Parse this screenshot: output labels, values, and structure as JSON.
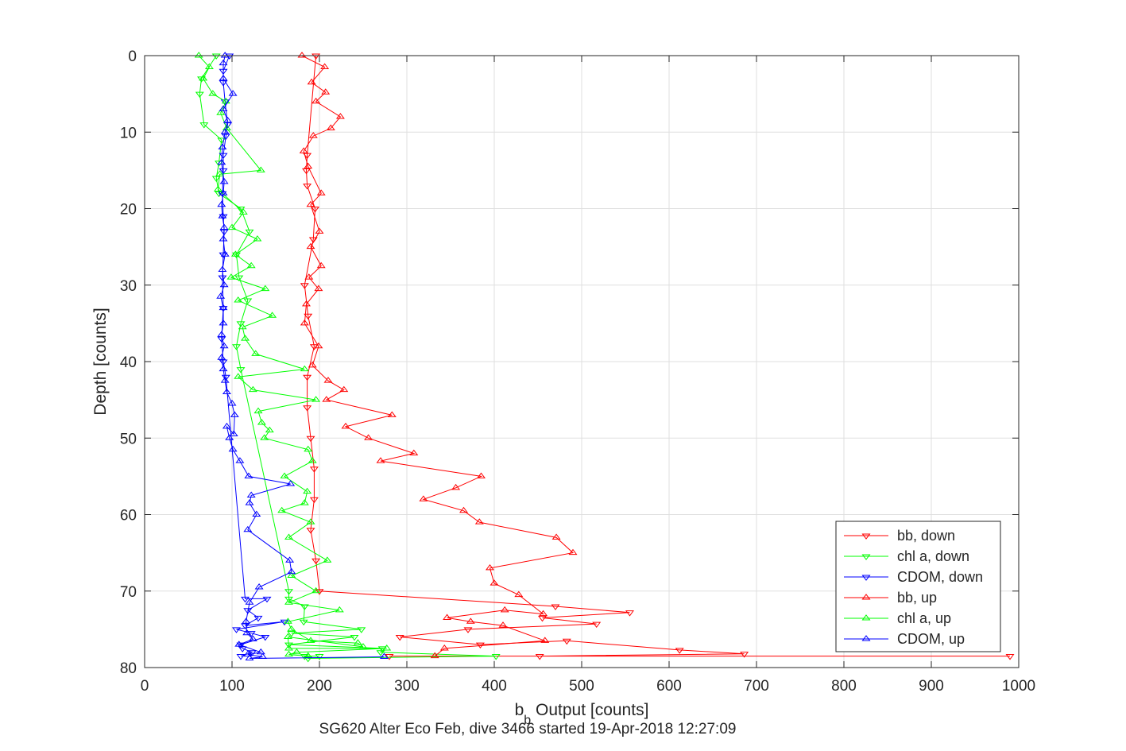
{
  "chart_data": {
    "type": "line",
    "title": "",
    "caption": "SG620 Alter Eco Feb, dive 3466 started 19-Apr-2018 12:27:09",
    "xlabel": {
      "base": "b",
      "sub": "b",
      "rest": " Output [counts]"
    },
    "ylabel": "Depth [counts]",
    "xlim": [
      0,
      1000
    ],
    "ylim": [
      0,
      80
    ],
    "y_reversed": true,
    "grid": true,
    "legend_position": "bottom-right",
    "xticks": [
      0,
      100,
      200,
      300,
      400,
      500,
      600,
      700,
      800,
      900,
      1000
    ],
    "yticks": [
      0,
      10,
      20,
      30,
      40,
      50,
      60,
      70,
      80
    ],
    "series": [
      {
        "name": "bb, down",
        "color": "#ff0000",
        "marker": "triangle-down",
        "x": [
          196,
          186,
          185,
          186,
          195,
          193,
          183,
          187,
          194,
          186,
          186,
          190,
          194,
          194,
          190,
          196,
          200,
          470,
          555,
          455,
          517,
          370,
          292,
          384,
          483,
          612,
          686,
          452,
          990,
          280
        ],
        "y": [
          0,
          13,
          15,
          17,
          20,
          24,
          30,
          34,
          38,
          42,
          46,
          50,
          54,
          58,
          62,
          66,
          70,
          72,
          72.8,
          73.5,
          74.3,
          75,
          76,
          77,
          76.5,
          77.7,
          78.2,
          78.5,
          78.5,
          78.5
        ]
      },
      {
        "name": "chl a, down",
        "color": "#00ff00",
        "marker": "triangle-down",
        "x": [
          82,
          65,
          63,
          68,
          88,
          85,
          82,
          85,
          110,
          120,
          105,
          108,
          118,
          110,
          105,
          110,
          165,
          165,
          183,
          182,
          248,
          168,
          240,
          165,
          272,
          270,
          402,
          187,
          183,
          200
        ],
        "y": [
          0,
          3,
          5,
          9,
          11,
          14,
          16,
          18,
          20,
          23,
          26,
          29,
          32,
          35,
          38,
          41,
          70,
          71,
          72,
          74,
          75,
          75.5,
          76,
          77,
          77.5,
          78,
          78.5,
          78.8,
          78.5,
          78.5
        ],
        "note_hidden": false
      },
      {
        "name": "CDOM, down",
        "color": "#0000ff",
        "marker": "triangle-down",
        "x": [
          97,
          90,
          90,
          92,
          95,
          93,
          90,
          90,
          89,
          90,
          91,
          90,
          89,
          90,
          88,
          90,
          93,
          115,
          140,
          118,
          130,
          115,
          160,
          105,
          122,
          138,
          110,
          112,
          123,
          110
        ],
        "y": [
          0,
          2,
          3.5,
          6,
          9,
          10.5,
          13,
          15,
          18,
          21,
          23,
          26,
          29,
          33,
          37,
          40,
          42,
          71,
          71,
          72.5,
          73.5,
          74.5,
          74,
          75,
          75.5,
          76,
          77,
          77.5,
          78,
          78.5
        ]
      },
      {
        "name": "bb, up",
        "color": "#ff0000",
        "marker": "triangle-up",
        "x": [
          180,
          206,
          191,
          207,
          196,
          224,
          213,
          193,
          182,
          187,
          202,
          190,
          200,
          190,
          202,
          188,
          199,
          185,
          183,
          199,
          192,
          210,
          228,
          208,
          283,
          230,
          256,
          308,
          270,
          385,
          356,
          319,
          365,
          383,
          471,
          490,
          395,
          400,
          428,
          456,
          412,
          346,
          373,
          410,
          458,
          343,
          332
        ],
        "y": [
          0,
          1.5,
          3.5,
          4.8,
          6,
          8,
          9.5,
          10.5,
          12.5,
          14.5,
          18,
          19.5,
          23,
          25,
          27.5,
          29,
          30.5,
          32.5,
          35,
          38,
          40.5,
          42.5,
          43.7,
          45,
          47,
          48.5,
          50,
          52,
          53,
          55,
          56.5,
          58,
          59.5,
          61,
          63,
          65,
          67,
          69,
          70.5,
          73,
          72.5,
          73.5,
          74,
          74.5,
          76.5,
          77.5,
          78.5
        ]
      },
      {
        "name": "chl a, up",
        "color": "#00ff00",
        "marker": "triangle-up",
        "x": [
          62,
          74,
          67,
          78,
          93,
          87,
          94,
          133,
          86,
          84,
          113,
          100,
          129,
          104,
          122,
          99,
          138,
          107,
          146,
          112,
          115,
          127,
          183,
          107,
          124,
          196,
          130,
          134,
          143,
          137,
          187,
          192,
          160,
          186,
          183,
          157,
          190,
          165,
          209,
          168,
          196,
          165,
          223,
          164,
          168,
          190,
          244,
          250,
          164,
          165,
          277,
          174,
          165,
          187
        ],
        "y": [
          0,
          1.5,
          3,
          5,
          6,
          7.5,
          9.5,
          15,
          15.5,
          17.5,
          20.5,
          22.5,
          24,
          26,
          27.5,
          29,
          30.5,
          32,
          34,
          35.5,
          37,
          39,
          41,
          42,
          43.7,
          45,
          46.5,
          48,
          49,
          50,
          51.5,
          53,
          55,
          57,
          58.5,
          59.5,
          61,
          63,
          66,
          68,
          70,
          71.5,
          72.5,
          74,
          75,
          76.5,
          76.8,
          77.3,
          76,
          77.5,
          77.5,
          78,
          78.3,
          78.5
        ]
      },
      {
        "name": "CDOM, up",
        "color": "#0000ff",
        "marker": "triangle-up",
        "x": [
          92,
          90,
          90,
          101,
          90,
          95,
          92,
          89,
          88,
          91,
          90,
          88,
          89,
          91,
          90,
          92,
          89,
          91,
          87,
          90,
          90,
          88,
          91,
          88,
          90,
          92,
          94,
          100,
          103,
          102,
          94,
          97,
          101,
          109,
          119,
          167,
          122,
          120,
          128,
          118,
          166,
          168,
          131,
          120,
          116,
          117,
          124,
          108,
          133,
          118,
          135,
          120,
          274
        ],
        "y": [
          0,
          1,
          3,
          5,
          7,
          8.5,
          10,
          12,
          14,
          16.5,
          18,
          19.5,
          21,
          22.5,
          24,
          26,
          28,
          30,
          31.5,
          33,
          35,
          36.5,
          38,
          39.5,
          41,
          42.5,
          44,
          45.5,
          47,
          49.5,
          48.5,
          50,
          51.5,
          53,
          55,
          56,
          57.5,
          58.5,
          60,
          62,
          66,
          67.5,
          69.5,
          71.5,
          74,
          75.5,
          76.3,
          77,
          78,
          78.3,
          78.6,
          78.8,
          78.6
        ]
      }
    ]
  }
}
